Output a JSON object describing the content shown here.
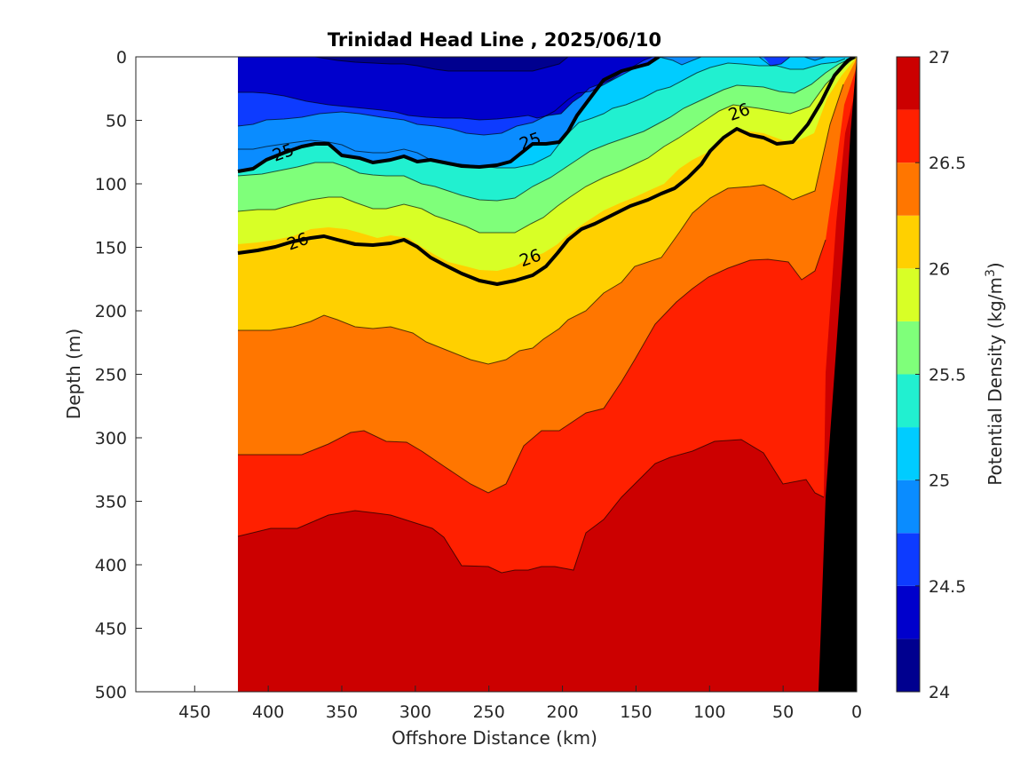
{
  "chart_data": {
    "type": "contour",
    "title": "Trinidad Head Line , 2025/06/10",
    "xlabel": "Offshore Distance (km)",
    "ylabel": "Depth (m)",
    "xlim": [
      490,
      0
    ],
    "ylim": [
      500,
      0
    ],
    "x_reversed": true,
    "y_reversed": true,
    "xticks": [
      450,
      400,
      350,
      300,
      250,
      200,
      150,
      100,
      50,
      0
    ],
    "yticks": [
      0,
      50,
      100,
      150,
      200,
      250,
      300,
      350,
      400,
      450,
      500
    ],
    "data_extent_km": [
      420,
      0
    ],
    "colorbar": {
      "label": "Potential Density (kg/m",
      "label_sup": "3",
      "label_close": ")",
      "range": [
        24,
        27
      ],
      "ticks": [
        24,
        24.5,
        25,
        25.5,
        26,
        26.5,
        27
      ],
      "levels": [
        24,
        24.25,
        24.5,
        24.75,
        25,
        25.25,
        25.5,
        25.75,
        26,
        26.25,
        26.5,
        26.75,
        27
      ],
      "colors": [
        "#00008f",
        "#0000cc",
        "#0d3bff",
        "#0a8cff",
        "#00ccff",
        "#21f0d0",
        "#7fff7a",
        "#d8ff26",
        "#ffd000",
        "#ff7600",
        "#ff2000",
        "#cc0000"
      ]
    },
    "contour_labels": [
      {
        "text": "25",
        "x": 390,
        "depth": 75
      },
      {
        "text": "25",
        "x": 222,
        "depth": 66
      },
      {
        "text": "26",
        "x": 380,
        "depth": 145
      },
      {
        "text": "26",
        "x": 222,
        "depth": 158
      },
      {
        "text": "26",
        "x": 80,
        "depth": 43
      }
    ],
    "bathymetry": {
      "label": "seafloor",
      "color": "#000000"
    }
  }
}
